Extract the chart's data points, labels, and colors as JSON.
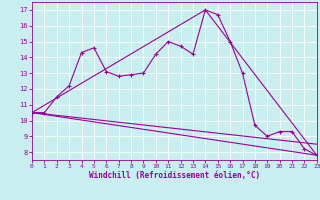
{
  "xlabel": "Windchill (Refroidissement éolien,°C)",
  "bg_color": "#c8eef0",
  "line_color": "#990099",
  "grid_color": "#ffffff",
  "xmin": 0,
  "xmax": 23,
  "ymin": 7.5,
  "ymax": 17.5,
  "yticks": [
    8,
    9,
    10,
    11,
    12,
    13,
    14,
    15,
    16,
    17
  ],
  "xticks": [
    0,
    1,
    2,
    3,
    4,
    5,
    6,
    7,
    8,
    9,
    10,
    11,
    12,
    13,
    14,
    15,
    16,
    17,
    18,
    19,
    20,
    21,
    22,
    23
  ],
  "series1_x": [
    0,
    1,
    2,
    3,
    4,
    5,
    6,
    7,
    8,
    9,
    10,
    11,
    12,
    13,
    14,
    15,
    16,
    17,
    18,
    19,
    20,
    21,
    22,
    23
  ],
  "series1_y": [
    10.5,
    10.5,
    11.5,
    12.2,
    14.3,
    14.6,
    13.1,
    12.8,
    12.9,
    13.0,
    14.2,
    15.0,
    14.7,
    14.2,
    17.0,
    16.7,
    15.0,
    13.0,
    9.7,
    9.0,
    9.3,
    9.3,
    8.2,
    7.8
  ],
  "series2_x": [
    0,
    14,
    23
  ],
  "series2_y": [
    10.5,
    17.0,
    7.8
  ],
  "series3_x": [
    0,
    23
  ],
  "series3_y": [
    10.5,
    7.8
  ],
  "series4_x": [
    0,
    23
  ],
  "series4_y": [
    10.5,
    8.5
  ]
}
